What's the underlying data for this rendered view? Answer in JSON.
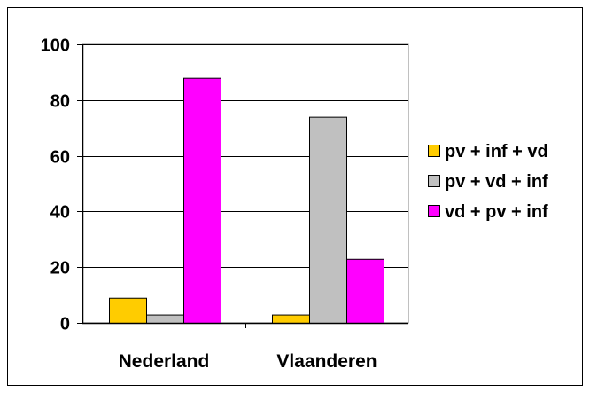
{
  "chart_data": {
    "type": "bar",
    "title": "",
    "xlabel": "",
    "ylabel": "",
    "categories": [
      "Nederland",
      "Vlaanderen"
    ],
    "ylim": [
      0,
      100
    ],
    "yticks": [
      0,
      20,
      40,
      60,
      80,
      100
    ],
    "grid": true,
    "legend_position": "right",
    "series": [
      {
        "name": "pv + inf + vd",
        "color": "#FFCC00",
        "values": [
          9,
          3
        ]
      },
      {
        "name": "pv + vd + inf",
        "color": "#C0C0C0",
        "values": [
          3,
          74
        ]
      },
      {
        "name": "vd + pv + inf",
        "color": "#FF00FF",
        "values": [
          88,
          23
        ]
      }
    ]
  }
}
